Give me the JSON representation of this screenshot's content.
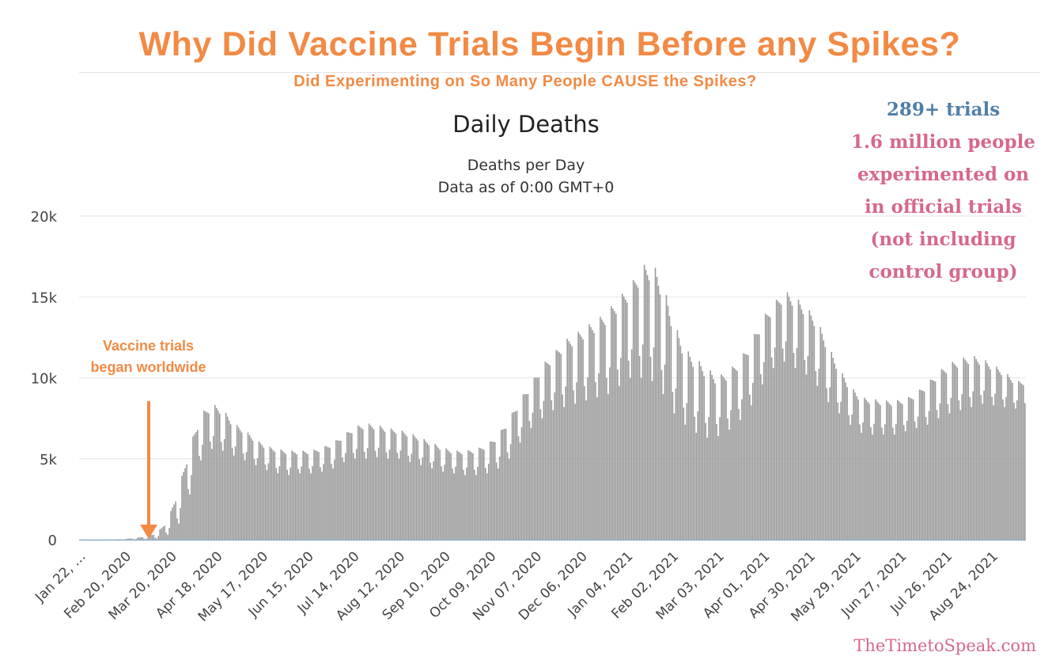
{
  "headline": {
    "title": "Why Did Vaccine Trials Begin Before any Spikes?",
    "subtitle": "Did Experimenting on So Many People CAUSE the Spikes?"
  },
  "side_note": {
    "trials": "289+ trials",
    "lines": [
      "1.6 million people",
      "experimented on",
      "in official trials",
      "(not including",
      "control group)"
    ]
  },
  "annotation": {
    "line1": "Vaccine trials",
    "line2": "began worldwide"
  },
  "watermark": "TheTimetoSpeak.com",
  "colors": {
    "accent": "#f28a45",
    "trials_blue": "#4f7fa8",
    "note_pink": "#d5698a",
    "bar_gray": "#999999",
    "grid": "#e6e6e6",
    "baseline": "#8fb0d0"
  },
  "chart_data": {
    "type": "bar",
    "title": "Daily Deaths",
    "subtitle_lines": [
      "Deaths per Day",
      "Data as of 0:00 GMT+0"
    ],
    "xlabel": "",
    "ylabel": "",
    "ylim": [
      0,
      20000
    ],
    "yticks": [
      0,
      5000,
      10000,
      15000,
      20000
    ],
    "ytick_labels": [
      "0",
      "5k",
      "10k",
      "15k",
      "20k"
    ],
    "x_start": "Jan 22, 2020",
    "x_end": "Sep 15, 2021",
    "xtick_labels": [
      "Jan 22, …",
      "Feb 20, 2020",
      "Mar 20, 2020",
      "Apr 18, 2020",
      "May 17, 2020",
      "Jun 15, 2020",
      "Jul 14, 2020",
      "Aug 12, 2020",
      "Sep 10, 2020",
      "Oct 09, 2020",
      "Nov 07, 2020",
      "Dec 06, 2020",
      "Jan 04, 2021",
      "Feb 02, 2021",
      "Mar 03, 2021",
      "Apr 01, 2021",
      "Apr 30, 2021",
      "May 29, 2021",
      "Jun 27, 2021",
      "Jul 26, 2021",
      "Aug 24, 2021"
    ],
    "series": [
      {
        "name": "Daily Deaths",
        "period_days": 7,
        "weekly_low": [
          0,
          0,
          0,
          0,
          10,
          20,
          30,
          70,
          300,
          1000,
          2800,
          4900,
          5600,
          5500,
          5200,
          4900,
          4600,
          4300,
          4100,
          4000,
          4100,
          4100,
          4200,
          4400,
          4800,
          5000,
          5000,
          5100,
          5000,
          5000,
          4800,
          4600,
          4400,
          4200,
          4100,
          4000,
          4000,
          4100,
          4400,
          5000,
          6000,
          6900,
          7500,
          8000,
          8200,
          8400,
          8600,
          8800,
          9000,
          9500,
          10000,
          10000,
          9800,
          9000,
          7800,
          7100,
          6600,
          6300,
          6400,
          6800,
          7400,
          8300,
          9600,
          10600,
          11000,
          10600,
          10200,
          9500,
          8500,
          7800,
          7100,
          6600,
          6500,
          6500,
          6500,
          6700,
          6900,
          7100,
          7500,
          7800,
          8000,
          8200,
          8400,
          8300,
          8200,
          8100
        ],
        "weekly_high": [
          2,
          2,
          2,
          3,
          40,
          100,
          200,
          400,
          1200,
          3200,
          5800,
          7800,
          8400,
          8100,
          7200,
          6800,
          6200,
          5800,
          5600,
          5500,
          5500,
          5500,
          5700,
          6000,
          6500,
          7000,
          7200,
          7100,
          6900,
          6800,
          6600,
          6300,
          6000,
          5700,
          5500,
          5500,
          5600,
          5900,
          6500,
          7500,
          8700,
          9700,
          10800,
          11500,
          12300,
          12700,
          13200,
          13600,
          14200,
          15000,
          15700,
          16900,
          17200,
          15800,
          13400,
          11800,
          11200,
          10600,
          10100,
          10500,
          11200,
          12300,
          13700,
          14600,
          15400,
          15000,
          14400,
          13600,
          12000,
          10600,
          9500,
          8800,
          8700,
          8600,
          8600,
          8700,
          9100,
          9700,
          10400,
          10900,
          11200,
          11400,
          11200,
          10800,
          10400,
          9800
        ]
      }
    ]
  }
}
